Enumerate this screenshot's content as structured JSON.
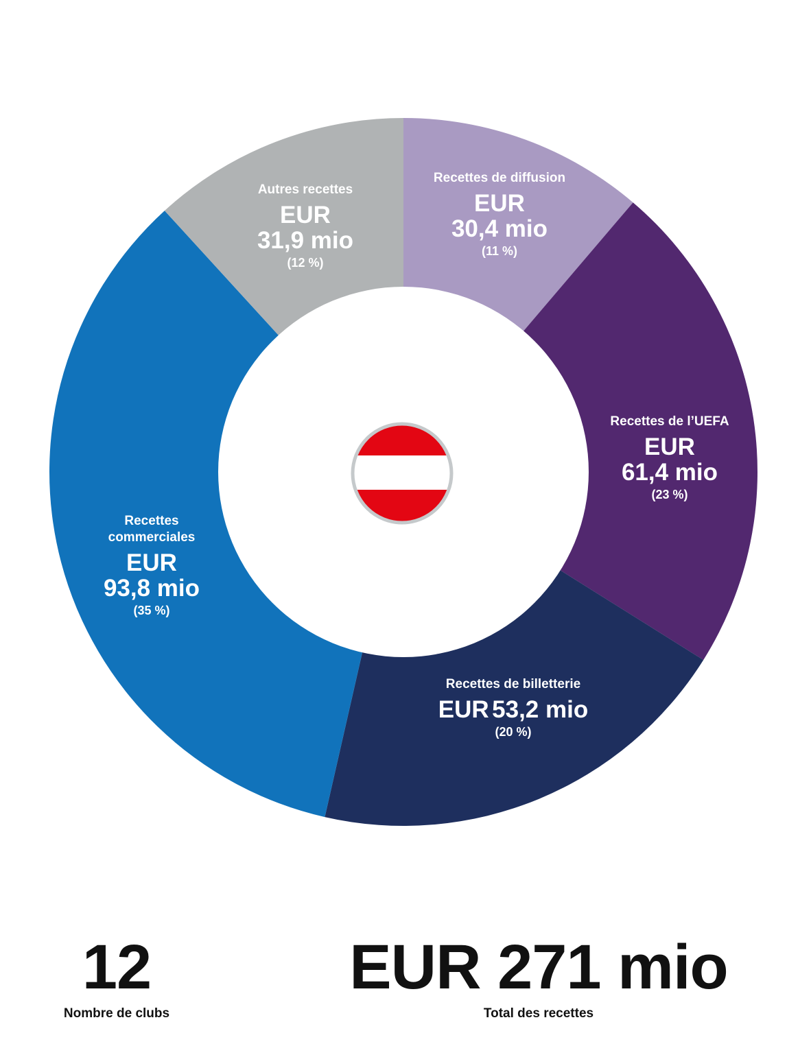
{
  "chart_data": {
    "type": "pie",
    "variant": "donut",
    "start": "top, clockwise",
    "slices": [
      {
        "label": "Recettes de diffusion",
        "currency": "EUR",
        "value_text": "30,4 mio",
        "value": 30.4,
        "percent_text": "(11 %)",
        "percent": 11,
        "color": "#a99ac2"
      },
      {
        "label": "Recettes de l’UEFA",
        "currency": "EUR",
        "value_text": "61,4 mio",
        "value": 61.4,
        "percent_text": "(23 %)",
        "percent": 23,
        "color": "#52286f"
      },
      {
        "label": "Recettes de billetterie",
        "currency": "EUR",
        "value_text": "53,2 mio",
        "value": 53.2,
        "percent_text": "(20 %)",
        "percent": 20,
        "color": "#1e2f5e"
      },
      {
        "label": "Recettes commerciales",
        "currency": "EUR",
        "value_text": "93,8 mio",
        "value": 93.8,
        "percent_text": "(35 %)",
        "percent": 35,
        "color": "#1173bb"
      },
      {
        "label": "Autres recettes",
        "currency": "EUR",
        "value_text": "31,9 mio",
        "value": 31.9,
        "percent_text": "(12 %)",
        "percent": 12,
        "color": "#b0b3b4"
      }
    ]
  },
  "center_flag": {
    "icon": "austria-flag-icon",
    "colors": [
      "#e30613",
      "#ffffff",
      "#e30613"
    ],
    "border": "#c5c9cb"
  },
  "stats": {
    "clubs": {
      "value": "12",
      "label": "Nombre de clubs"
    },
    "revenue": {
      "value": "EUR 271 mio",
      "label": "Total des recettes"
    }
  }
}
